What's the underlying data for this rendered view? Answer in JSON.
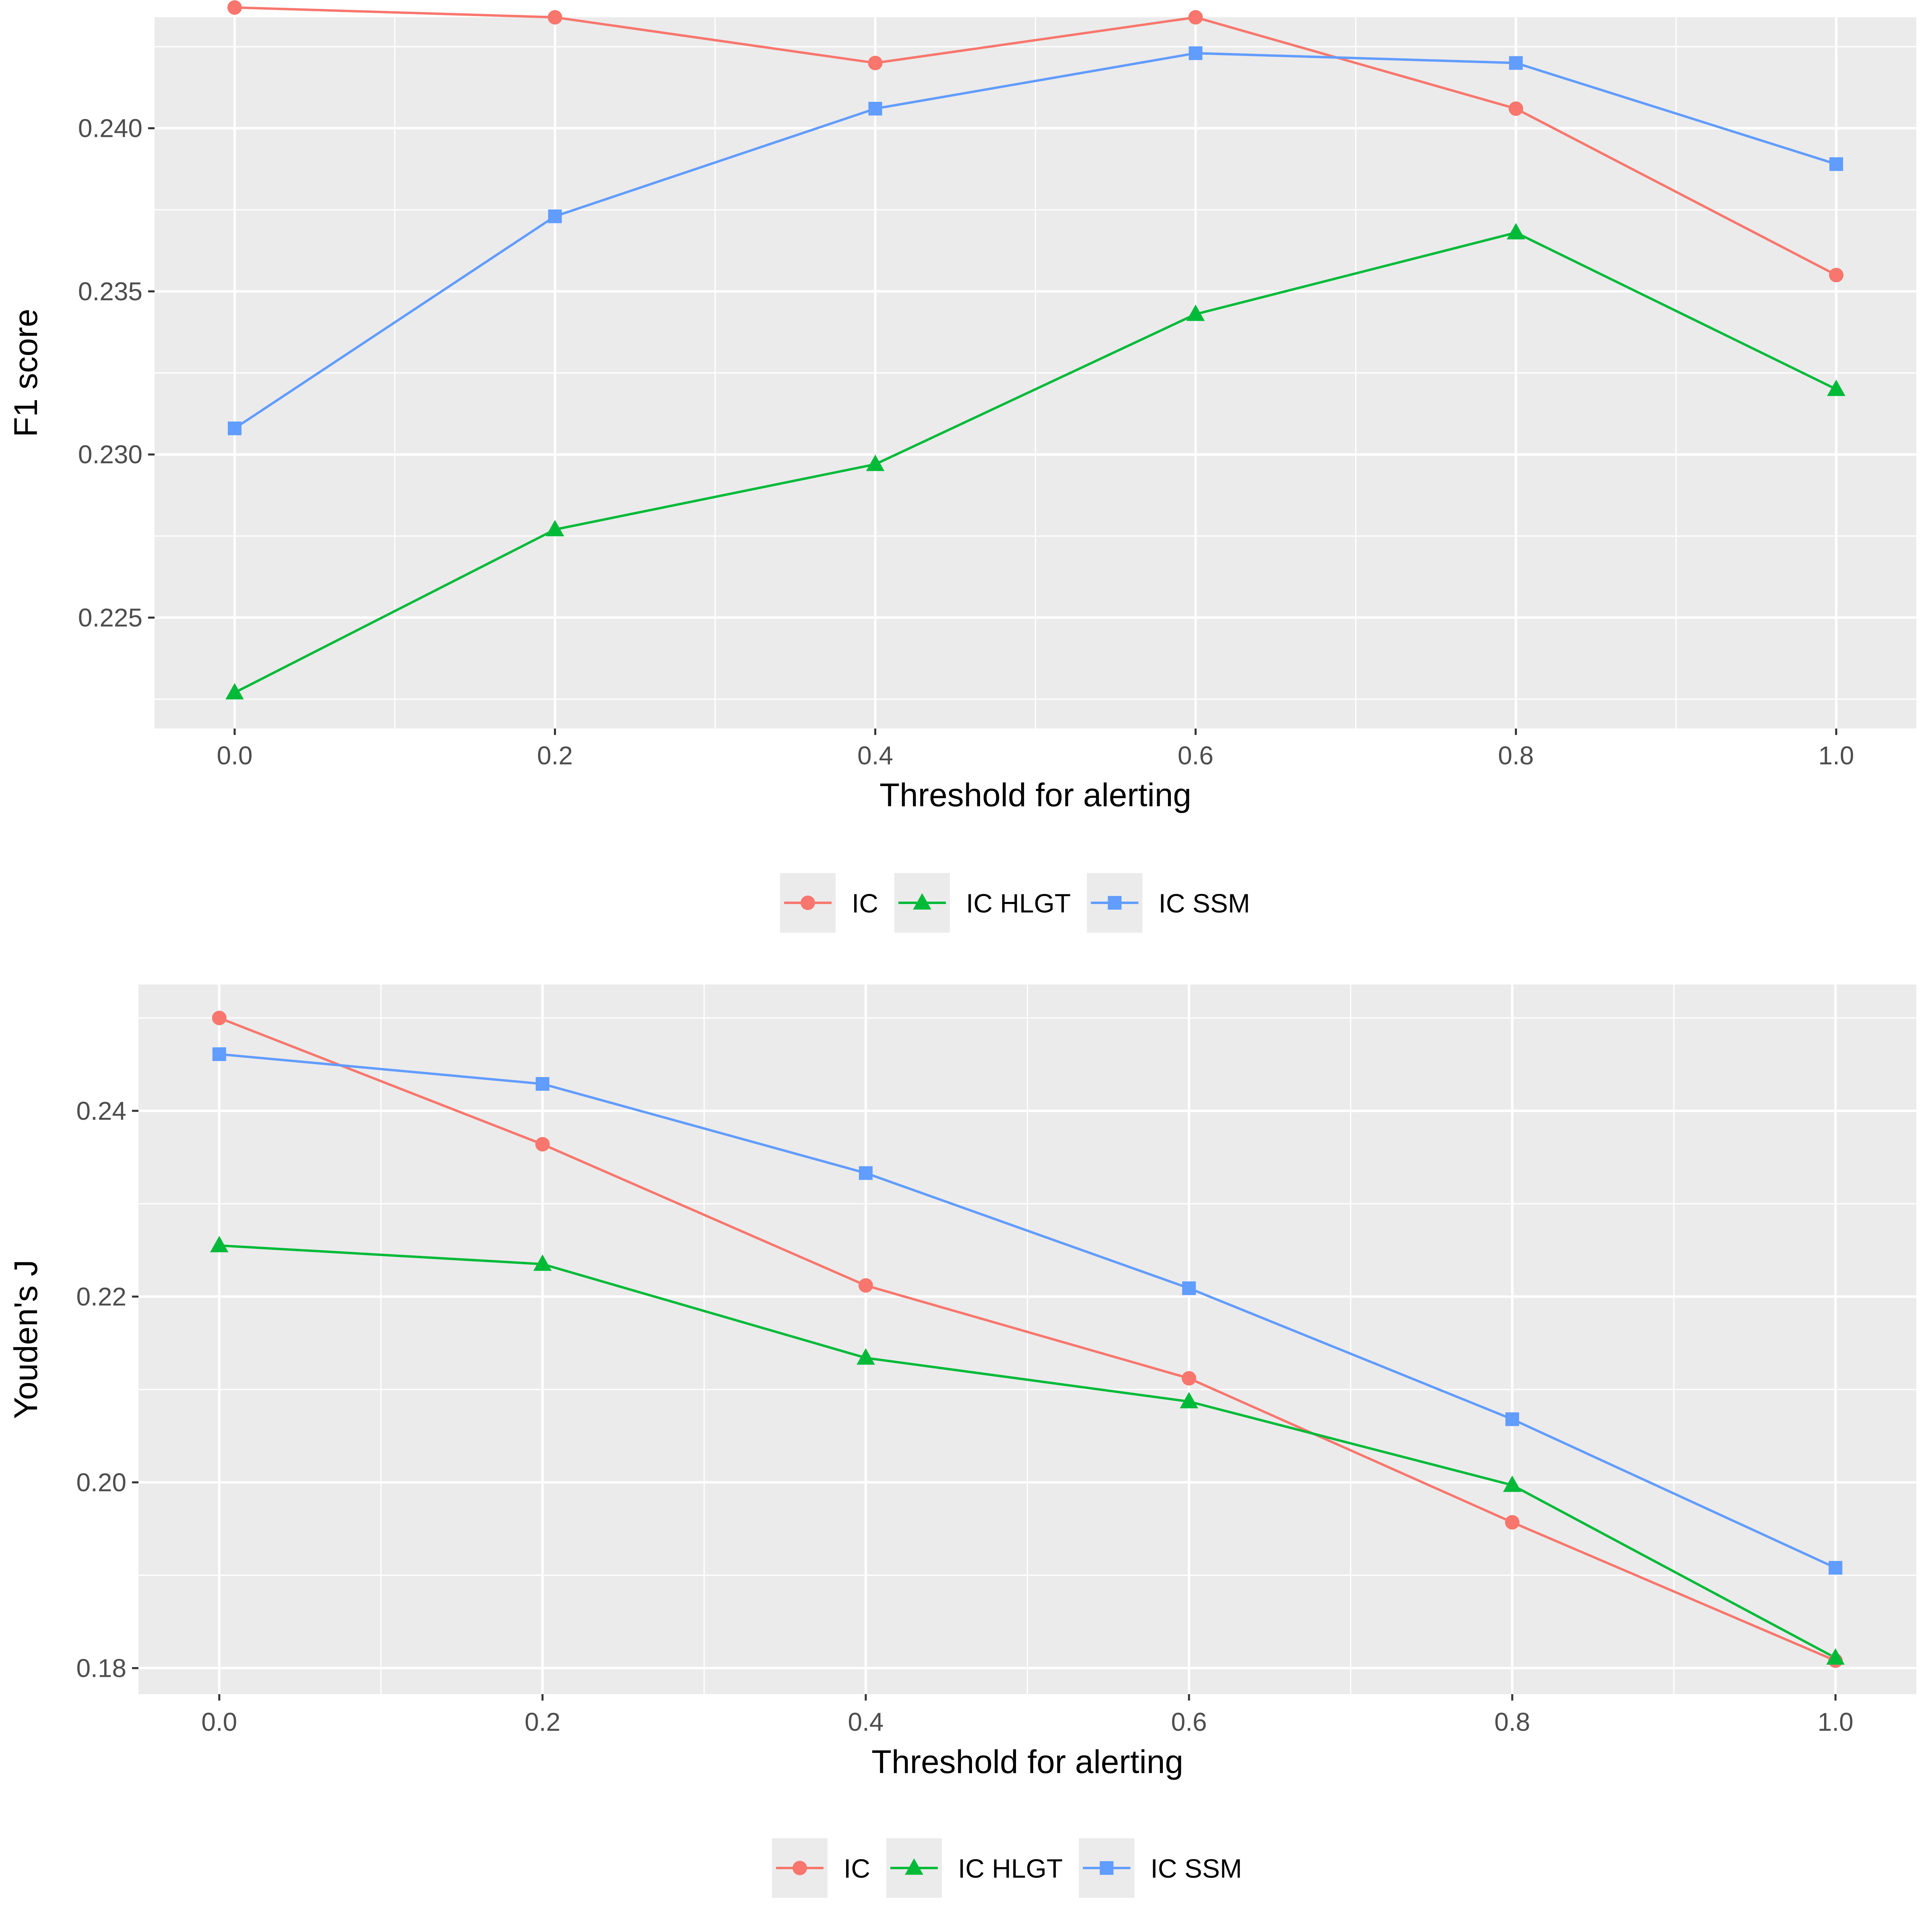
{
  "chart_data": [
    {
      "type": "line",
      "title": "",
      "xlabel": "Threshold for alerting",
      "ylabel": "F1 score",
      "x": [
        0.0,
        0.2,
        0.4,
        0.6,
        0.8,
        1.0
      ],
      "xlim": [
        -0.05,
        1.05
      ],
      "ylim": [
        0.2216,
        0.2434
      ],
      "x_major_ticks": [
        0.0,
        0.2,
        0.4,
        0.6,
        0.8,
        1.0
      ],
      "x_tick_labels": [
        "0.0",
        "0.2",
        "0.4",
        "0.6",
        "0.8",
        "1.0"
      ],
      "y_major_ticks": [
        0.225,
        0.23,
        0.235,
        0.24
      ],
      "y_tick_labels": [
        "0.225",
        "0.230",
        "0.235",
        "0.240"
      ],
      "grid": true,
      "legend_position": "bottom",
      "series": [
        {
          "name": "IC",
          "marker": "circle",
          "color": "#F8766D",
          "values": [
            0.2437,
            0.2434,
            0.242,
            0.2434,
            0.2406,
            0.2355
          ]
        },
        {
          "name": "IC HLGT",
          "marker": "triangle",
          "color": "#00BA38",
          "values": [
            0.2227,
            0.2277,
            0.2297,
            0.2343,
            0.2368,
            0.232
          ]
        },
        {
          "name": "IC SSM",
          "marker": "square",
          "color": "#619CFF",
          "values": [
            0.2308,
            0.2373,
            0.2406,
            0.2423,
            0.242,
            0.2389
          ]
        }
      ]
    },
    {
      "type": "line",
      "title": "",
      "xlabel": "Threshold for alerting",
      "ylabel": "Youden's J",
      "x": [
        0.0,
        0.2,
        0.4,
        0.6,
        0.8,
        1.0
      ],
      "xlim": [
        -0.05,
        1.05
      ],
      "ylim": [
        0.1772,
        0.2536
      ],
      "x_major_ticks": [
        0.0,
        0.2,
        0.4,
        0.6,
        0.8,
        1.0
      ],
      "x_tick_labels": [
        "0.0",
        "0.2",
        "0.4",
        "0.6",
        "0.8",
        "1.0"
      ],
      "y_major_ticks": [
        0.18,
        0.2,
        0.22,
        0.24
      ],
      "y_tick_labels": [
        "0.18",
        "0.20",
        "0.22",
        "0.24"
      ],
      "grid": true,
      "legend_position": "bottom",
      "series": [
        {
          "name": "IC",
          "marker": "circle",
          "color": "#F8766D",
          "values": [
            0.25,
            0.2364,
            0.2212,
            0.2112,
            0.1957,
            0.1808
          ]
        },
        {
          "name": "IC HLGT",
          "marker": "triangle",
          "color": "#00BA38",
          "values": [
            0.2255,
            0.2235,
            0.2134,
            0.2087,
            0.1997,
            0.1811
          ]
        },
        {
          "name": "IC SSM",
          "marker": "square",
          "color": "#619CFF",
          "values": [
            0.2461,
            0.2429,
            0.2333,
            0.2209,
            0.2068,
            0.1908
          ]
        }
      ]
    }
  ]
}
